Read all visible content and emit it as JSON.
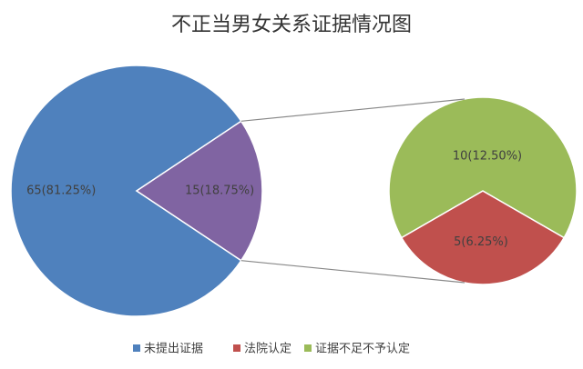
{
  "chart_data": {
    "type": "pie",
    "title": "不正当男女关系证据情况图",
    "categories": [
      "未提出证据",
      "法院认定",
      "证据不足不予认定"
    ],
    "values": [
      65,
      5,
      10
    ],
    "value_labels": [
      "65(81.25%)",
      "5(6.25%)",
      "10(12.50%)"
    ],
    "colors": [
      "#4f81bd",
      "#c0504d",
      "#9bbb59"
    ],
    "other_value": 15,
    "other_value_label": "15(18.75%)",
    "other_color": "#8064a2"
  }
}
